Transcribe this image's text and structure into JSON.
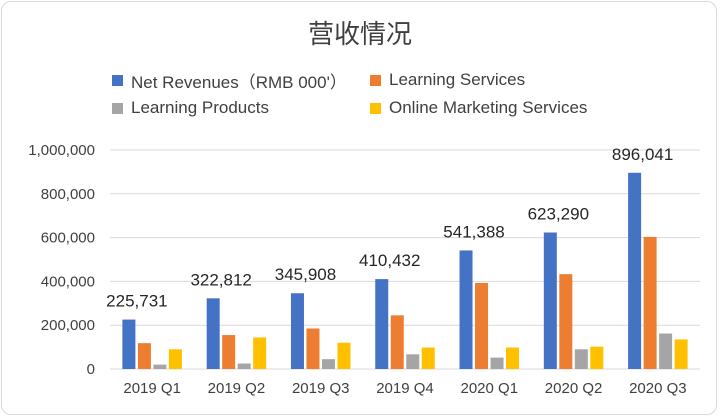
{
  "chart_data": {
    "type": "bar",
    "title": "营收情况",
    "categories": [
      "2019 Q1",
      "2019 Q2",
      "2019 Q3",
      "2019 Q4",
      "2020 Q1",
      "2020 Q2",
      "2020 Q3"
    ],
    "series": [
      {
        "name": "Net Revenues（RMB 000'）",
        "color": "#4472c4",
        "values": [
          225731,
          322812,
          345908,
          410432,
          541388,
          623290,
          896041
        ]
      },
      {
        "name": "Learning Services",
        "color": "#ed7d31",
        "values": [
          118000,
          155000,
          185000,
          245000,
          393000,
          433000,
          603000
        ]
      },
      {
        "name": "Learning Products",
        "color": "#a5a5a5",
        "values": [
          20000,
          25000,
          45000,
          67000,
          52000,
          90000,
          162000
        ]
      },
      {
        "name": "Online Marketing Services",
        "color": "#ffc000",
        "values": [
          90000,
          144000,
          120000,
          98000,
          98000,
          102000,
          135000
        ]
      }
    ],
    "data_labels": [
      "225,731",
      "322,812",
      "345,908",
      "410,432",
      "541,388",
      "623,290",
      "896,041"
    ],
    "y_ticks": [
      0,
      200000,
      400000,
      600000,
      800000,
      1000000
    ],
    "y_tick_labels": [
      "0",
      "200,000",
      "400,000",
      "600,000",
      "800,000",
      "1,000,000"
    ],
    "ylim": [
      0,
      1000000
    ],
    "xlabel": "",
    "ylabel": "",
    "grid": true,
    "legend_position": "top"
  }
}
